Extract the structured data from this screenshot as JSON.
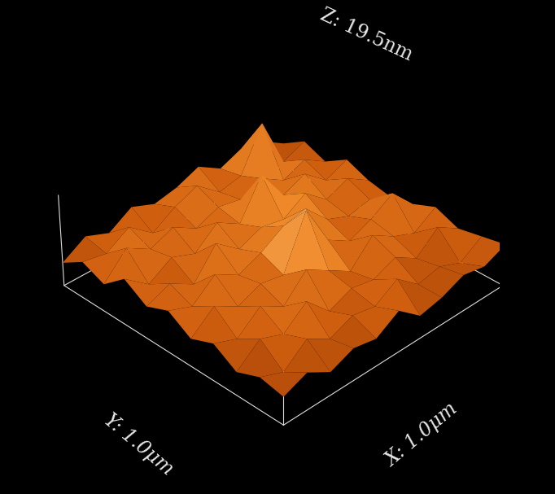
{
  "chart_data": {
    "type": "surface",
    "x_label": "X: 1.0μm",
    "y_label": "Y: 1.0μm",
    "z_label": "Z: 19.5nm",
    "xlim": [
      0,
      1.0
    ],
    "ylim": [
      0,
      1.0
    ],
    "zlim": [
      0,
      19.5
    ],
    "tick_labels": false,
    "grid": false,
    "x": [
      0,
      0.1,
      0.2,
      0.3,
      0.4,
      0.5,
      0.6,
      0.7,
      0.8,
      0.9,
      1.0
    ],
    "y": [
      0,
      0.1,
      0.2,
      0.3,
      0.4,
      0.5,
      0.6,
      0.7,
      0.8,
      0.9,
      1.0
    ],
    "heights": [
      [
        6,
        8,
        5,
        7,
        6,
        9,
        5,
        6,
        8,
        7,
        9
      ],
      [
        7,
        5,
        9,
        6,
        8,
        7,
        10,
        6,
        7,
        5,
        8
      ],
      [
        5,
        9,
        7,
        11,
        6,
        8,
        7,
        9,
        6,
        10,
        7
      ],
      [
        8,
        6,
        10,
        7,
        12,
        9,
        6,
        11,
        8,
        6,
        9
      ],
      [
        6,
        10,
        7,
        9,
        8,
        19,
        10,
        7,
        9,
        12,
        7
      ],
      [
        9,
        7,
        11,
        8,
        10,
        13,
        14,
        9,
        7,
        8,
        6
      ],
      [
        7,
        9,
        6,
        12,
        8,
        10,
        9,
        12,
        8,
        10,
        7
      ],
      [
        10,
        6,
        9,
        7,
        11,
        8,
        16,
        9,
        11,
        7,
        9
      ],
      [
        6,
        11,
        8,
        10,
        7,
        9,
        8,
        10,
        7,
        9,
        6
      ],
      [
        8,
        7,
        10,
        6,
        9,
        11,
        7,
        8,
        17,
        6,
        8
      ],
      [
        5,
        8,
        6,
        9,
        7,
        8,
        10,
        7,
        9,
        8,
        5
      ]
    ]
  }
}
